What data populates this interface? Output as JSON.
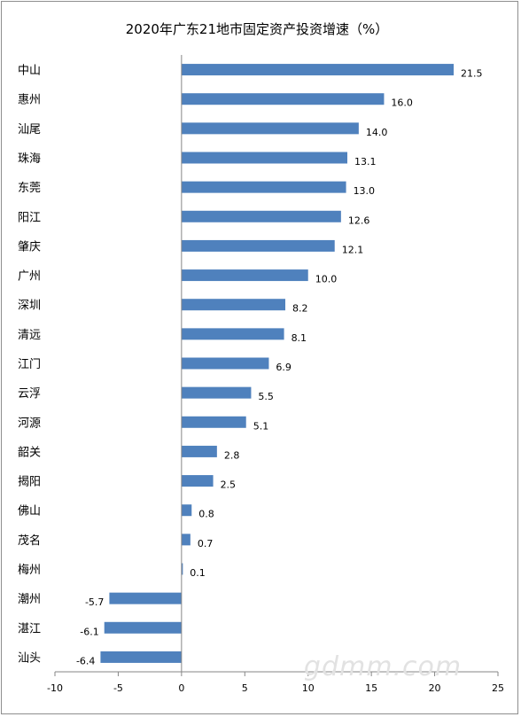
{
  "chart_data": {
    "type": "bar",
    "orientation": "horizontal",
    "title": "2020年广东21地市固定资产投资增速（%）",
    "categories": [
      "中山",
      "惠州",
      "汕尾",
      "珠海",
      "东莞",
      "阳江",
      "肇庆",
      "广州",
      "深圳",
      "清远",
      "江门",
      "云浮",
      "河源",
      "韶关",
      "揭阳",
      "佛山",
      "茂名",
      "梅州",
      "潮州",
      "湛江",
      "汕头"
    ],
    "values": [
      21.5,
      16.0,
      14.0,
      13.1,
      13.0,
      12.6,
      12.1,
      10.0,
      8.2,
      8.1,
      6.9,
      5.5,
      5.1,
      2.8,
      2.5,
      0.8,
      0.7,
      0.1,
      -5.7,
      -6.1,
      -6.4
    ],
    "value_labels": [
      "21.5",
      "16.0",
      "14.0",
      "13.1",
      "13.0",
      "12.6",
      "12.1",
      "10.0",
      "8.2",
      "8.1",
      "6.9",
      "5.5",
      "5.1",
      "2.8",
      "2.5",
      "0.8",
      "0.7",
      "0.1",
      "-5.7",
      "-6.1",
      "-6.4"
    ],
    "xlim": [
      -10,
      25
    ],
    "xticks": [
      "-10",
      "-5",
      "0",
      "5",
      "10",
      "15",
      "20",
      "25"
    ],
    "grid": false,
    "legend": "none",
    "bar_color": "#4f81bd"
  },
  "watermark": "gdmm.com"
}
